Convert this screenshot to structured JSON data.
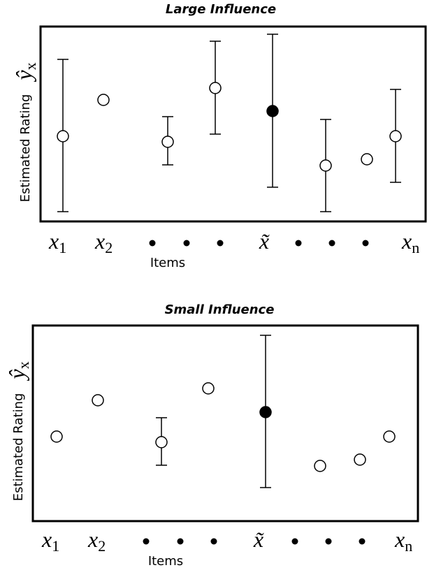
{
  "panels": [
    {
      "title": "Large Influence",
      "y_label": "Estimated Rating",
      "y_symbol": {
        "base": "ŷ",
        "sub": "x"
      },
      "x_label": "Items",
      "x_items": [
        {
          "base": "x",
          "sub": "1"
        },
        {
          "base": "x",
          "sub": "2"
        },
        {
          "base": "x̃"
        },
        {
          "base": "x",
          "sub": "n"
        }
      ]
    },
    {
      "title": "Small Influence",
      "y_label": "Estimated Rating",
      "y_symbol": {
        "base": "ŷ",
        "sub": "x"
      },
      "x_label": "Items",
      "x_items": [
        {
          "base": "x",
          "sub": "1"
        },
        {
          "base": "x",
          "sub": "2"
        },
        {
          "base": "x̃"
        },
        {
          "base": "x",
          "sub": "n"
        }
      ]
    }
  ]
}
